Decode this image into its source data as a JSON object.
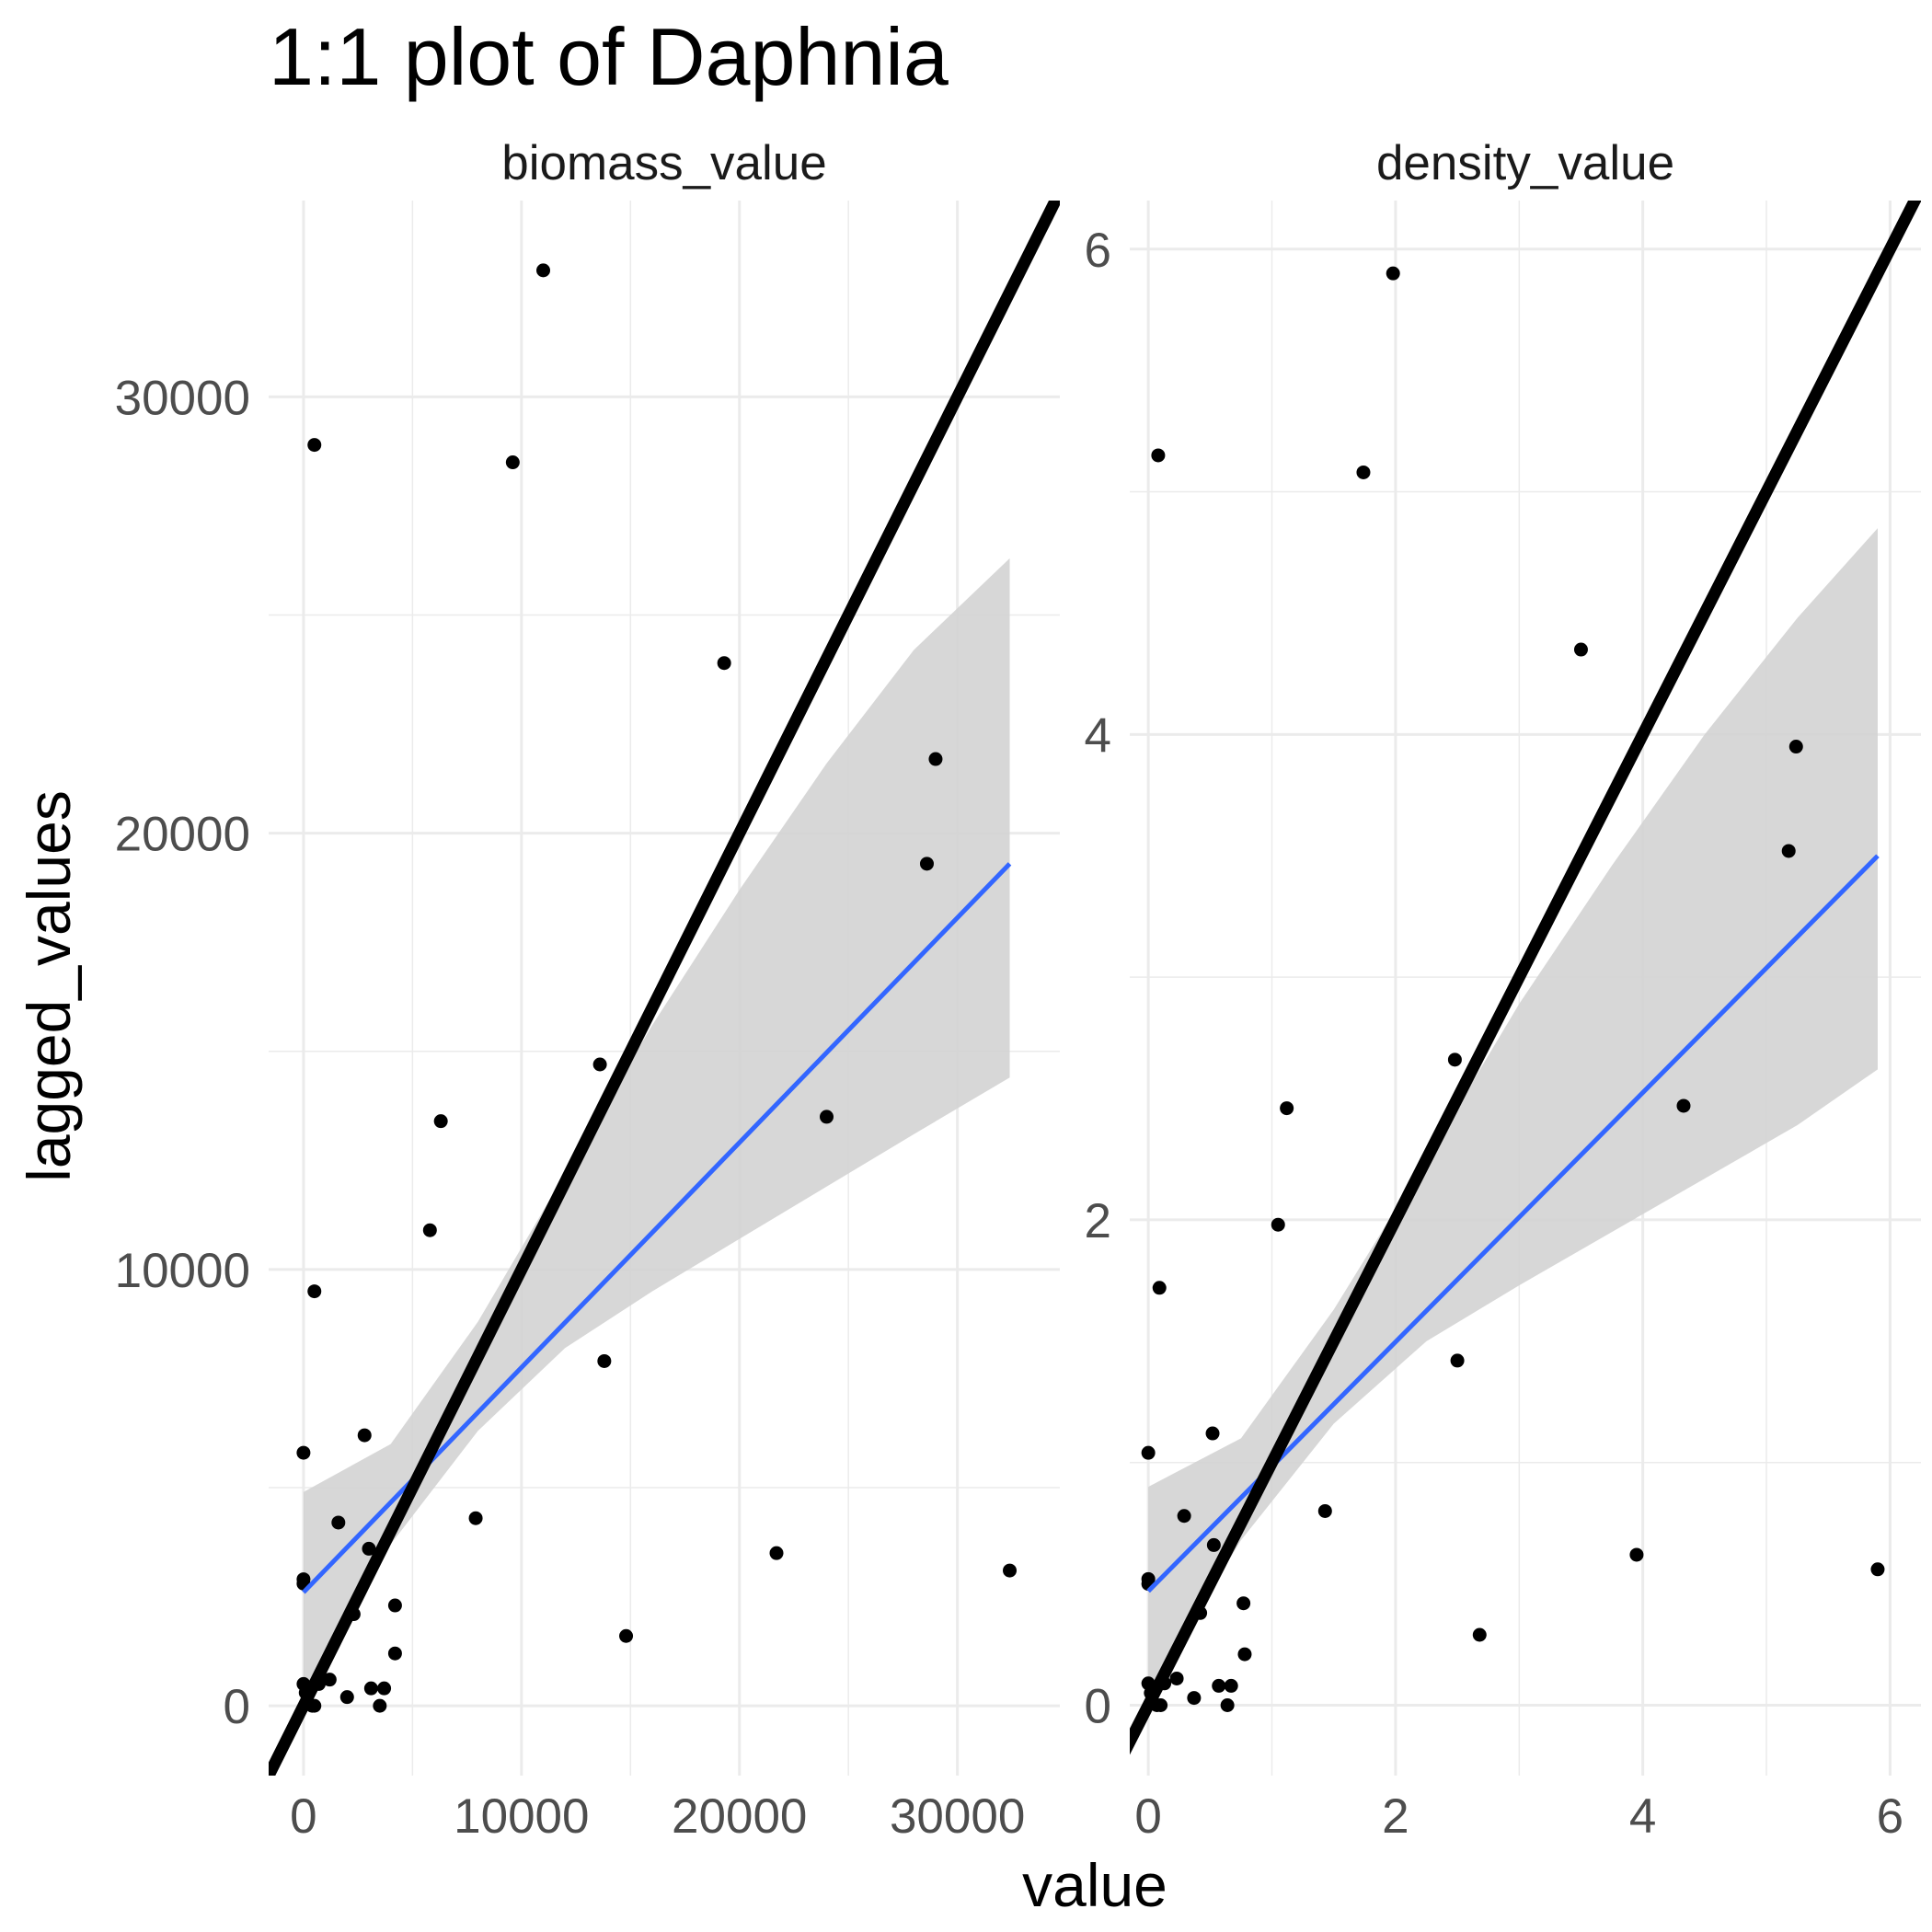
{
  "chart_data": {
    "type": "scatter",
    "title": "1:1 plot of Daphnia",
    "xlabel": "value",
    "ylabel": "lagged_values",
    "grid": true,
    "colors": {
      "points": "#000000",
      "fit_line": "#3366FF",
      "confidence_band": "#d3d3d3",
      "identity_line": "#000000"
    },
    "panels": [
      {
        "strip_label": "biomass_value",
        "xlim": [
          -1600,
          34700
        ],
        "ylim": [
          -1600,
          34500
        ],
        "x_ticks": [
          0,
          10000,
          20000,
          30000
        ],
        "x_tick_labels": [
          "0",
          "10000",
          "20000",
          "30000"
        ],
        "y_ticks": [
          0,
          10000,
          20000,
          30000
        ],
        "y_tick_labels": [
          "0",
          "10000",
          "20000",
          "30000"
        ],
        "points": [
          {
            "x": 11000,
            "y": 32900
          },
          {
            "x": 500,
            "y": 28900
          },
          {
            "x": 9600,
            "y": 28500
          },
          {
            "x": 19300,
            "y": 23900
          },
          {
            "x": 29000,
            "y": 21700
          },
          {
            "x": 28600,
            "y": 19300
          },
          {
            "x": 13600,
            "y": 14700
          },
          {
            "x": 24000,
            "y": 13500
          },
          {
            "x": 6300,
            "y": 13400
          },
          {
            "x": 5800,
            "y": 10900
          },
          {
            "x": 500,
            "y": 9500
          },
          {
            "x": 13800,
            "y": 7900
          },
          {
            "x": 2800,
            "y": 6200
          },
          {
            "x": 0,
            "y": 5800
          },
          {
            "x": 1600,
            "y": 4200
          },
          {
            "x": 7900,
            "y": 4300
          },
          {
            "x": 3000,
            "y": 3600
          },
          {
            "x": 21700,
            "y": 3500
          },
          {
            "x": 32400,
            "y": 3100
          },
          {
            "x": 0,
            "y": 2900
          },
          {
            "x": 0,
            "y": 2800
          },
          {
            "x": 4200,
            "y": 2300
          },
          {
            "x": 2300,
            "y": 2100
          },
          {
            "x": 14800,
            "y": 1600
          },
          {
            "x": 4200,
            "y": 1200
          },
          {
            "x": 1200,
            "y": 600
          },
          {
            "x": 0,
            "y": 500
          },
          {
            "x": 300,
            "y": 400
          },
          {
            "x": 700,
            "y": 500
          },
          {
            "x": 3100,
            "y": 400
          },
          {
            "x": 3700,
            "y": 400
          },
          {
            "x": 2000,
            "y": 200
          },
          {
            "x": 400,
            "y": 0
          },
          {
            "x": 500,
            "y": 0
          },
          {
            "x": 3500,
            "y": 0
          },
          {
            "x": 100,
            "y": 300
          }
        ],
        "fit_line": {
          "x": [
            0,
            32400
          ],
          "y": [
            2600,
            19300
          ]
        },
        "confidence_band": {
          "x": [
            0,
            4000,
            8000,
            12000,
            16000,
            20000,
            24000,
            28000,
            32400
          ],
          "lower": [
            300,
            3700,
            6300,
            8200,
            9500,
            10700,
            11900,
            13100,
            14400
          ],
          "upper": [
            4900,
            6000,
            8800,
            12200,
            15600,
            18700,
            21600,
            24200,
            26300
          ]
        },
        "identity_line": {
          "x": [
            -1600,
            34700
          ],
          "y": [
            -1600,
            34700
          ]
        }
      },
      {
        "strip_label": "density_value",
        "xlim": [
          -0.15,
          6.25
        ],
        "ylim": [
          -0.29,
          6.2
        ],
        "x_ticks": [
          0,
          2,
          4,
          6
        ],
        "x_tick_labels": [
          "0",
          "2",
          "4",
          "6"
        ],
        "y_ticks": [
          0,
          2,
          4,
          6
        ],
        "y_tick_labels": [
          "0",
          "2",
          "4",
          "6"
        ],
        "points": [
          {
            "x": 1.98,
            "y": 5.9
          },
          {
            "x": 0.08,
            "y": 5.15
          },
          {
            "x": 1.74,
            "y": 5.08
          },
          {
            "x": 3.5,
            "y": 4.35
          },
          {
            "x": 5.24,
            "y": 3.95
          },
          {
            "x": 5.18,
            "y": 3.52
          },
          {
            "x": 2.48,
            "y": 2.66
          },
          {
            "x": 4.33,
            "y": 2.47
          },
          {
            "x": 1.12,
            "y": 2.46
          },
          {
            "x": 1.05,
            "y": 1.98
          },
          {
            "x": 0.09,
            "y": 1.72
          },
          {
            "x": 2.5,
            "y": 1.42
          },
          {
            "x": 0.52,
            "y": 1.12
          },
          {
            "x": 0.0,
            "y": 1.04
          },
          {
            "x": 0.29,
            "y": 0.78
          },
          {
            "x": 1.43,
            "y": 0.8
          },
          {
            "x": 0.53,
            "y": 0.66
          },
          {
            "x": 3.95,
            "y": 0.62
          },
          {
            "x": 5.9,
            "y": 0.56
          },
          {
            "x": 0.0,
            "y": 0.52
          },
          {
            "x": 0.0,
            "y": 0.5
          },
          {
            "x": 0.77,
            "y": 0.42
          },
          {
            "x": 0.42,
            "y": 0.38
          },
          {
            "x": 2.68,
            "y": 0.29
          },
          {
            "x": 0.78,
            "y": 0.21
          },
          {
            "x": 0.23,
            "y": 0.11
          },
          {
            "x": 0.0,
            "y": 0.09
          },
          {
            "x": 0.06,
            "y": 0.07
          },
          {
            "x": 0.13,
            "y": 0.09
          },
          {
            "x": 0.57,
            "y": 0.08
          },
          {
            "x": 0.67,
            "y": 0.08
          },
          {
            "x": 0.37,
            "y": 0.03
          },
          {
            "x": 0.07,
            "y": 0.0
          },
          {
            "x": 0.1,
            "y": 0.0
          },
          {
            "x": 0.64,
            "y": 0.0
          },
          {
            "x": 0.02,
            "y": 0.05
          }
        ],
        "fit_line": {
          "x": [
            0,
            5.9
          ],
          "y": [
            0.47,
            3.5
          ]
        },
        "confidence_band": {
          "x": [
            0,
            0.75,
            1.5,
            2.25,
            3.0,
            3.75,
            4.5,
            5.25,
            5.9
          ],
          "lower": [
            0.05,
            0.68,
            1.16,
            1.5,
            1.73,
            1.95,
            2.17,
            2.39,
            2.62
          ],
          "upper": [
            0.9,
            1.1,
            1.63,
            2.25,
            2.89,
            3.46,
            4.0,
            4.48,
            4.85
          ]
        },
        "identity_line": {
          "x": [
            -0.29,
            6.25
          ],
          "y": [
            -0.29,
            6.25
          ]
        }
      }
    ]
  }
}
